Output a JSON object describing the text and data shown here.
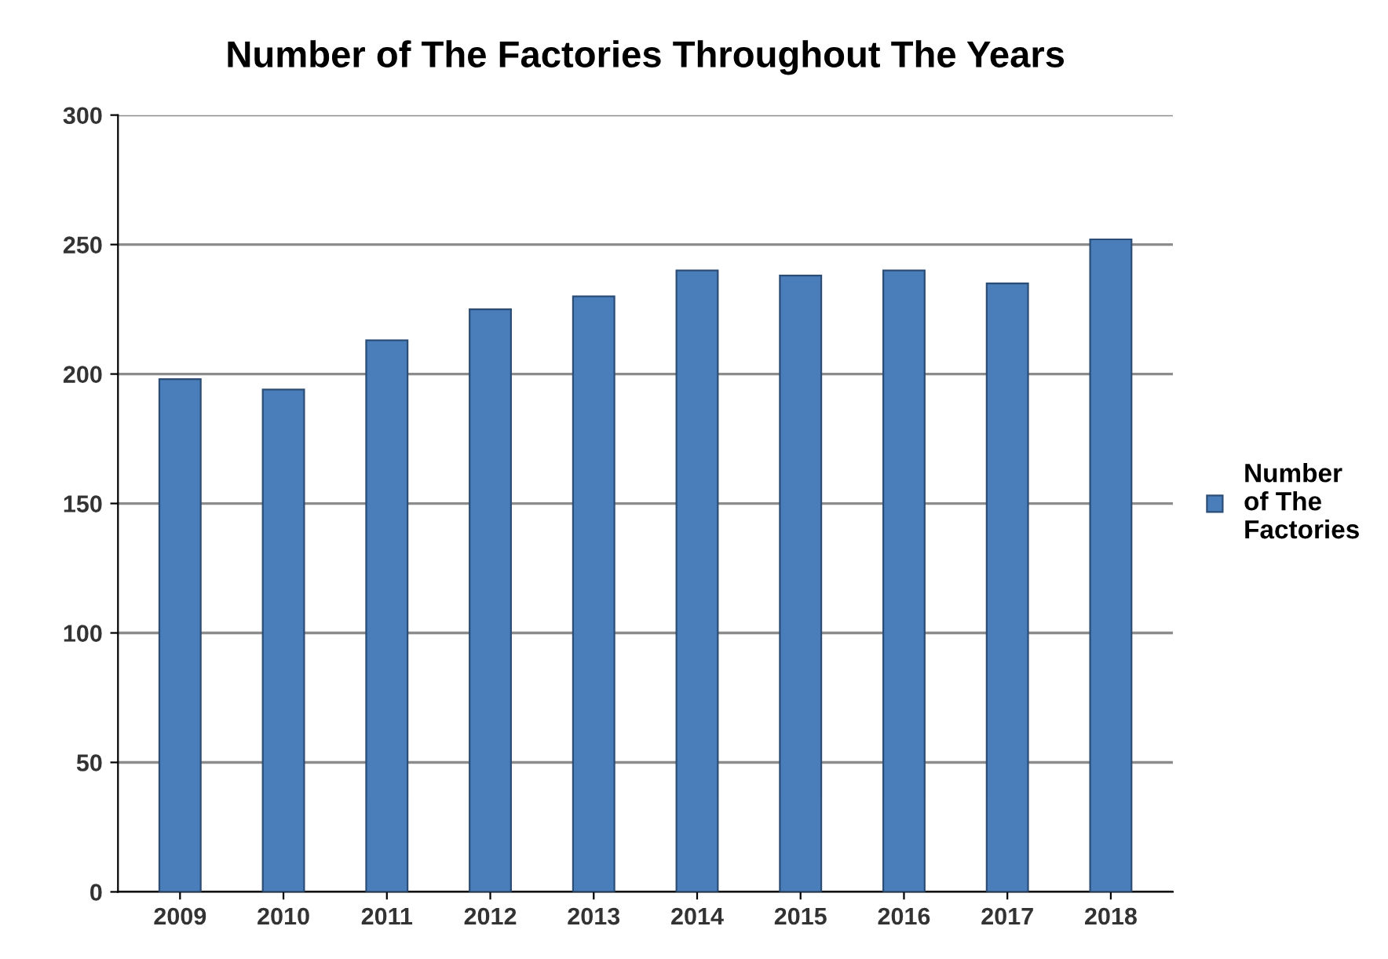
{
  "chart_data": {
    "type": "bar",
    "title": "Number of The Factories Throughout The Years",
    "categories": [
      "2009",
      "2010",
      "2011",
      "2012",
      "2013",
      "2014",
      "2015",
      "2016",
      "2017",
      "2018"
    ],
    "series": [
      {
        "name": "Number\nof The\nFactories",
        "color": "#4a7ebb",
        "values": [
          198,
          194,
          213,
          225,
          230,
          240,
          238,
          240,
          235,
          252
        ]
      }
    ],
    "ylim": [
      0,
      300
    ],
    "yticks": [
      0,
      50,
      100,
      150,
      200,
      250,
      300
    ],
    "grid": "y",
    "legend": "right"
  }
}
